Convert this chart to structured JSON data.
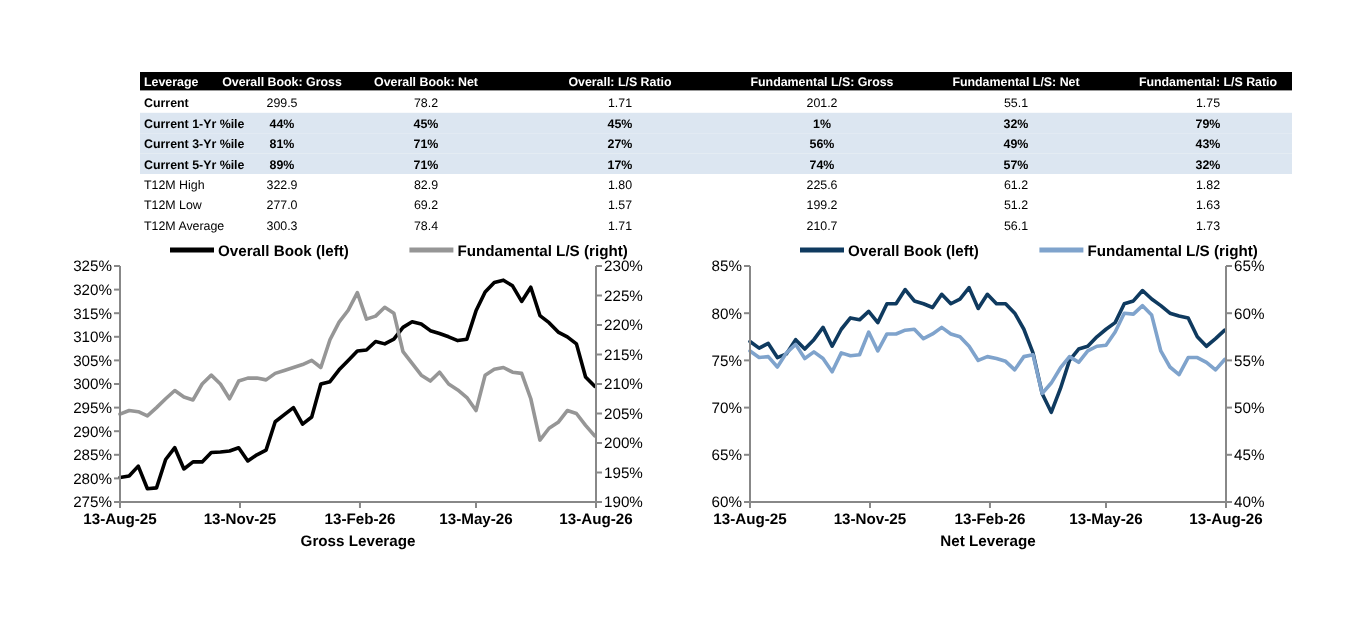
{
  "chart_data": [
    {
      "type": "other",
      "title": "Leverage",
      "categories": [
        "Current",
        "Current 1-Yr %ile",
        "Current 3-Yr %ile",
        "Current 5-Yr %ile",
        "T12M High",
        "T12M Low",
        "T12M Average"
      ],
      "series": [
        {
          "name": "Overall Book: Gross",
          "values": [
            299.5,
            44,
            81,
            89,
            322.9,
            277.0,
            300.3
          ],
          "value_labels": [
            "299.5",
            "44%",
            "81%",
            "89%",
            "322.9",
            "277.0",
            "300.3"
          ]
        },
        {
          "name": "Overall Book: Net",
          "values": [
            78.2,
            45,
            71,
            71,
            82.9,
            69.2,
            78.4
          ],
          "value_labels": [
            "78.2",
            "45%",
            "71%",
            "71%",
            "82.9",
            "69.2",
            "78.4"
          ]
        },
        {
          "name": "Overall: L/S Ratio",
          "values": [
            1.71,
            45,
            27,
            17,
            1.8,
            1.57,
            1.71
          ],
          "value_labels": [
            "1.71",
            "45%",
            "27%",
            "17%",
            "1.80",
            "1.57",
            "1.71"
          ]
        },
        {
          "name": "Fundamental L/S: Gross",
          "values": [
            201.2,
            1,
            56,
            74,
            225.6,
            199.2,
            210.7
          ],
          "value_labels": [
            "201.2",
            "1%",
            "56%",
            "74%",
            "225.6",
            "199.2",
            "210.7"
          ]
        },
        {
          "name": "Fundamental L/S: Net",
          "values": [
            55.1,
            32,
            49,
            57,
            61.2,
            51.2,
            56.1
          ],
          "value_labels": [
            "55.1",
            "32%",
            "49%",
            "57%",
            "61.2",
            "51.2",
            "56.1"
          ]
        },
        {
          "name": "Fundamental: L/S Ratio",
          "values": [
            1.75,
            79,
            43,
            32,
            1.82,
            1.63,
            1.73
          ],
          "value_labels": [
            "1.75",
            "79%",
            "43%",
            "32%",
            "1.82",
            "1.63",
            "1.73"
          ]
        }
      ]
    },
    {
      "type": "line",
      "xlabel": "Gross Leverage",
      "legend": "top",
      "grid": false,
      "x": [
        "2025-08-13",
        "2025-08-20",
        "2025-08-27",
        "2025-09-03",
        "2025-09-10",
        "2025-09-17",
        "2025-09-24",
        "2025-10-01",
        "2025-10-08",
        "2025-10-15",
        "2025-10-22",
        "2025-10-29",
        "2025-11-05",
        "2025-11-12",
        "2025-11-19",
        "2025-11-26",
        "2025-12-03",
        "2025-12-10",
        "2025-12-17",
        "2025-12-24",
        "2025-12-31",
        "2026-01-07",
        "2026-01-14",
        "2026-01-21",
        "2026-01-28",
        "2026-02-04",
        "2026-02-11",
        "2026-02-18",
        "2026-02-25",
        "2026-03-04",
        "2026-03-11",
        "2026-03-18",
        "2026-03-25",
        "2026-04-01",
        "2026-04-08",
        "2026-04-15",
        "2026-04-22",
        "2026-04-29",
        "2026-05-06",
        "2026-05-13",
        "2026-05-20",
        "2026-05-27",
        "2026-06-03",
        "2026-06-10",
        "2026-06-17",
        "2026-06-24",
        "2026-07-01",
        "2026-07-08",
        "2026-07-15",
        "2026-07-22",
        "2026-07-29",
        "2026-08-05",
        "2026-08-12"
      ],
      "xlim": [
        "2025-08-13",
        "2026-08-13"
      ],
      "xticks": [
        {
          "value": "2025-08-13",
          "label": "13-Aug-25"
        },
        {
          "value": "2025-11-13",
          "label": "13-Nov-25"
        },
        {
          "value": "2026-02-13",
          "label": "13-Feb-26"
        },
        {
          "value": "2026-05-13",
          "label": "13-May-26"
        },
        {
          "value": "2026-08-13",
          "label": "13-Aug-26"
        }
      ],
      "ylim": [
        275,
        325
      ],
      "yticks": [
        {
          "value": 275,
          "label": "275%"
        },
        {
          "value": 280,
          "label": "280%"
        },
        {
          "value": 285,
          "label": "285%"
        },
        {
          "value": 290,
          "label": "290%"
        },
        {
          "value": 295,
          "label": "295%"
        },
        {
          "value": 300,
          "label": "300%"
        },
        {
          "value": 305,
          "label": "305%"
        },
        {
          "value": 310,
          "label": "310%"
        },
        {
          "value": 315,
          "label": "315%"
        },
        {
          "value": 320,
          "label": "320%"
        },
        {
          "value": 325,
          "label": "325%"
        }
      ],
      "y2lim": [
        190,
        230
      ],
      "y2ticks": [
        {
          "value": 190,
          "label": "190%"
        },
        {
          "value": 195,
          "label": "195%"
        },
        {
          "value": 200,
          "label": "200%"
        },
        {
          "value": 205,
          "label": "205%"
        },
        {
          "value": 210,
          "label": "210%"
        },
        {
          "value": 215,
          "label": "215%"
        },
        {
          "value": 220,
          "label": "220%"
        },
        {
          "value": 225,
          "label": "225%"
        },
        {
          "value": 230,
          "label": "230%"
        }
      ],
      "series": [
        {
          "name": "Overall Book (left)",
          "color": "#000000",
          "values": [
            280.2,
            280.5,
            282.6,
            277.8,
            278,
            284,
            286.5,
            282,
            283.5,
            283.5,
            285.5,
            285.6,
            285.8,
            286.5,
            283.7,
            285,
            286,
            292,
            293.5,
            295,
            291.5,
            293,
            300,
            300.5,
            303,
            305,
            307,
            307.2,
            309,
            308.5,
            309.5,
            312,
            313.2,
            312.7,
            311.3,
            310.7,
            310,
            309.2,
            309.5,
            315.5,
            319.5,
            321.5,
            322,
            320.8,
            317.5,
            320.5,
            314.5,
            313,
            311,
            310,
            308.5,
            301.5,
            299.5
          ]
        },
        {
          "name": "Fundamental L/S (right)",
          "color": "#969696",
          "axis": "y2",
          "values": [
            204.9,
            205.5,
            205.3,
            204.6,
            206,
            207.5,
            208.9,
            207.8,
            207.3,
            210,
            211.5,
            210,
            207.5,
            210.5,
            211,
            211,
            210.7,
            211.8,
            212.3,
            212.8,
            213.3,
            214,
            212.8,
            217.5,
            220.5,
            222.5,
            225.5,
            221,
            221.5,
            223,
            222,
            215.5,
            213.5,
            211.5,
            210.5,
            212,
            210,
            209,
            207.7,
            205.5,
            211.5,
            212.5,
            212.8,
            212,
            211.8,
            207.5,
            200.5,
            202.5,
            203.5,
            205.5,
            205,
            203,
            201.2
          ]
        }
      ]
    },
    {
      "type": "line",
      "xlabel": "Net Leverage",
      "legend": "top",
      "grid": false,
      "x": [
        "2025-08-13",
        "2025-08-20",
        "2025-08-27",
        "2025-09-03",
        "2025-09-10",
        "2025-09-17",
        "2025-09-24",
        "2025-10-01",
        "2025-10-08",
        "2025-10-15",
        "2025-10-22",
        "2025-10-29",
        "2025-11-05",
        "2025-11-12",
        "2025-11-19",
        "2025-11-26",
        "2025-12-03",
        "2025-12-10",
        "2025-12-17",
        "2025-12-24",
        "2025-12-31",
        "2026-01-07",
        "2026-01-14",
        "2026-01-21",
        "2026-01-28",
        "2026-02-04",
        "2026-02-11",
        "2026-02-18",
        "2026-02-25",
        "2026-03-04",
        "2026-03-11",
        "2026-03-18",
        "2026-03-25",
        "2026-04-01",
        "2026-04-08",
        "2026-04-15",
        "2026-04-22",
        "2026-04-29",
        "2026-05-06",
        "2026-05-13",
        "2026-05-20",
        "2026-05-27",
        "2026-06-03",
        "2026-06-10",
        "2026-06-17",
        "2026-06-24",
        "2026-07-01",
        "2026-07-08",
        "2026-07-15",
        "2026-07-22",
        "2026-07-29",
        "2026-08-05",
        "2026-08-12"
      ],
      "xlim": [
        "2025-08-13",
        "2026-08-13"
      ],
      "xticks": [
        {
          "value": "2025-08-13",
          "label": "13-Aug-25"
        },
        {
          "value": "2025-11-13",
          "label": "13-Nov-25"
        },
        {
          "value": "2026-02-13",
          "label": "13-Feb-26"
        },
        {
          "value": "2026-05-13",
          "label": "13-May-26"
        },
        {
          "value": "2026-08-13",
          "label": "13-Aug-26"
        }
      ],
      "ylim": [
        60,
        85
      ],
      "yticks": [
        {
          "value": 60,
          "label": "60%"
        },
        {
          "value": 65,
          "label": "65%"
        },
        {
          "value": 70,
          "label": "70%"
        },
        {
          "value": 75,
          "label": "75%"
        },
        {
          "value": 80,
          "label": "80%"
        },
        {
          "value": 85,
          "label": "85%"
        }
      ],
      "y2lim": [
        40,
        65
      ],
      "y2ticks": [
        {
          "value": 40,
          "label": "40%"
        },
        {
          "value": 45,
          "label": "45%"
        },
        {
          "value": 50,
          "label": "50%"
        },
        {
          "value": 55,
          "label": "55%"
        },
        {
          "value": 60,
          "label": "60%"
        },
        {
          "value": 65,
          "label": "65%"
        }
      ],
      "series": [
        {
          "name": "Overall Book (left)",
          "color": "#0f3a5f",
          "values": [
            77.0,
            76.3,
            76.8,
            75.3,
            75.7,
            77.2,
            76.2,
            77.2,
            78.5,
            76.5,
            78.3,
            79.5,
            79.3,
            80.2,
            79,
            81,
            81,
            82.5,
            81.3,
            81,
            80.6,
            82,
            81,
            81.5,
            82.7,
            80.5,
            82,
            81,
            81,
            80,
            78.3,
            75.8,
            71.5,
            69.5,
            72,
            75,
            76.2,
            76.5,
            77.5,
            78.3,
            79,
            81,
            81.3,
            82.4,
            81.5,
            80.8,
            80,
            79.7,
            79.5,
            77.5,
            76.5,
            77.3,
            78.2
          ]
        },
        {
          "name": "Fundamental L/S (right)",
          "color": "#7fa3cc",
          "axis": "y2",
          "values": [
            56,
            55.3,
            55.4,
            54.3,
            55.8,
            56.7,
            55.2,
            55.9,
            55.2,
            53.8,
            55.8,
            55.5,
            55.6,
            58,
            56,
            57.8,
            57.8,
            58.2,
            58.3,
            57.3,
            57.8,
            58.5,
            57.8,
            57.5,
            56.5,
            55,
            55.4,
            55.2,
            54.9,
            54,
            55.4,
            55.6,
            51.5,
            52.6,
            54.2,
            55.4,
            54.8,
            56,
            56.5,
            56.6,
            58,
            60,
            59.9,
            60.8,
            59.8,
            56,
            54.3,
            53.5,
            55.3,
            55.3,
            54.8,
            54,
            55.1
          ]
        }
      ]
    }
  ]
}
